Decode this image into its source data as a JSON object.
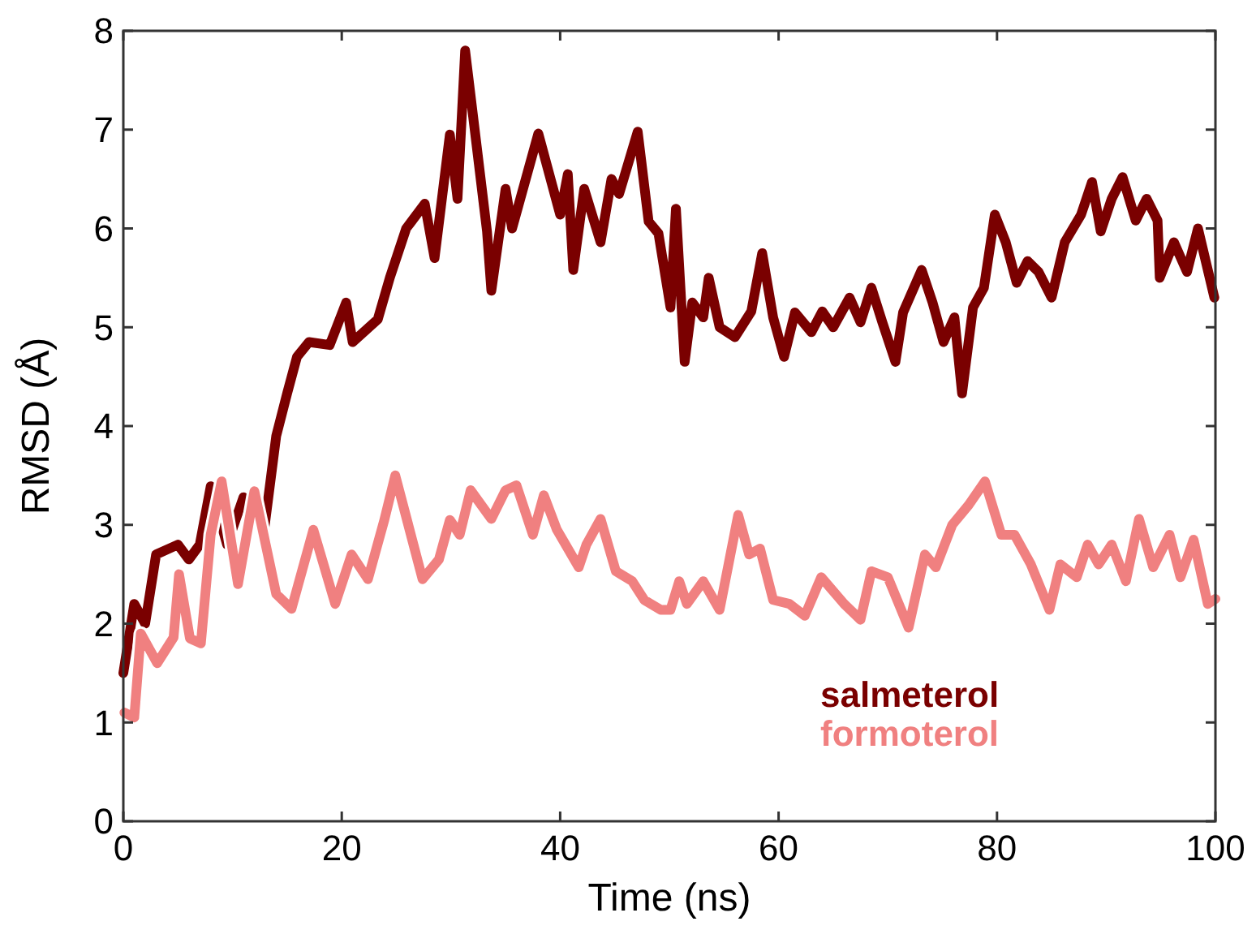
{
  "chart_data": {
    "type": "line",
    "xlabel": "Time (ns)",
    "ylabel": "RMSD (Å)",
    "xlim": [
      0,
      100
    ],
    "xticks": [
      0,
      20,
      40,
      60,
      80,
      100
    ],
    "ylim": [
      0,
      8
    ],
    "yticks": [
      0,
      1,
      2,
      3,
      4,
      5,
      6,
      7,
      8
    ],
    "grid": false,
    "legend": "bottom right",
    "marker": "none",
    "line_style": "solid",
    "series": [
      {
        "name": "salmeterol",
        "color": "#7a0000",
        "x": [
          0,
          1,
          2,
          3,
          5,
          6,
          7,
          8,
          9.5,
          11,
          12.9,
          14,
          15,
          15.9,
          17,
          18.9,
          20.4,
          21,
          23.3,
          24.4,
          25.9,
          27.6,
          28.5,
          29.9,
          30.6,
          31.3,
          33.3,
          33.7,
          35,
          35.6,
          38,
          40,
          40.7,
          41.2,
          42.2,
          43.7,
          44.7,
          45.4,
          47.1,
          48.1,
          49,
          50.1,
          50.6,
          51.4,
          52.1,
          53.1,
          53.6,
          54.6,
          56,
          57.5,
          58.5,
          59.5,
          60.5,
          61.5,
          63,
          64,
          65,
          66.5,
          67.5,
          68.5,
          69.5,
          70.7,
          71.4,
          73.1,
          74.1,
          75.1,
          76.1,
          76.8,
          77.8,
          78.8,
          79.8,
          80.8,
          81.8,
          82.8,
          83.8,
          85,
          86.2,
          87.7,
          88.7,
          89.5,
          90.5,
          91.5,
          92.7,
          93.7,
          94.7,
          94.9,
          96.2,
          97.4,
          98.4,
          99.9
        ],
        "values": [
          1.5,
          2.2,
          2.0,
          2.7,
          2.8,
          2.65,
          2.8,
          3.39,
          2.8,
          3.28,
          2.95,
          3.9,
          4.33,
          4.7,
          4.85,
          4.82,
          5.25,
          4.85,
          5.08,
          5.5,
          6.0,
          6.25,
          5.7,
          6.95,
          6.3,
          7.8,
          5.97,
          5.37,
          6.4,
          6.0,
          6.96,
          6.14,
          6.55,
          5.58,
          6.4,
          5.86,
          6.5,
          6.35,
          6.98,
          6.07,
          5.95,
          5.2,
          6.2,
          4.65,
          5.25,
          5.1,
          5.5,
          5.0,
          4.9,
          5.16,
          5.75,
          5.1,
          4.7,
          5.15,
          4.95,
          5.16,
          5.0,
          5.3,
          5.05,
          5.4,
          5.05,
          4.65,
          5.15,
          5.58,
          5.25,
          4.85,
          5.1,
          4.33,
          5.2,
          5.4,
          6.14,
          5.86,
          5.45,
          5.67,
          5.56,
          5.3,
          5.86,
          6.14,
          6.47,
          5.97,
          6.3,
          6.52,
          6.08,
          6.3,
          6.08,
          5.5,
          5.86,
          5.56,
          6.0,
          5.3
        ]
      },
      {
        "name": "formoterol",
        "color": "#f08080",
        "x": [
          0.1,
          1,
          1.6,
          3.1,
          4.6,
          5.1,
          6.1,
          7.1,
          8.0,
          9.0,
          10.5,
          12,
          14,
          15.4,
          17.4,
          19.4,
          20.9,
          22.4,
          23.9,
          24.9,
          27.4,
          28.9,
          29.9,
          30.8,
          31.8,
          33.7,
          35,
          36,
          37.5,
          38.5,
          39.7,
          41.7,
          42.4,
          43.7,
          45.1,
          46.6,
          47.7,
          49.2,
          50.1,
          50.9,
          51.6,
          53.1,
          54.6,
          56.3,
          57.3,
          58.3,
          59.5,
          61,
          62.4,
          63.9,
          66,
          67.5,
          68.5,
          70,
          71.9,
          73.4,
          74.4,
          75.9,
          77.4,
          78.9,
          80.4,
          81.6,
          83.1,
          84.8,
          85.8,
          87.3,
          88.3,
          89.3,
          90.5,
          91.8,
          93,
          94.3,
          95.8,
          96.8,
          98,
          99.3,
          100
        ],
        "values": [
          1.1,
          1.05,
          1.9,
          1.6,
          1.86,
          2.5,
          1.85,
          1.8,
          2.9,
          3.44,
          2.4,
          3.34,
          2.3,
          2.15,
          2.95,
          2.2,
          2.7,
          2.45,
          3.05,
          3.5,
          2.45,
          2.65,
          3.05,
          2.9,
          3.35,
          3.06,
          3.35,
          3.4,
          2.9,
          3.3,
          2.95,
          2.57,
          2.8,
          3.06,
          2.53,
          2.43,
          2.24,
          2.14,
          2.14,
          2.43,
          2.2,
          2.43,
          2.14,
          3.1,
          2.7,
          2.76,
          2.24,
          2.2,
          2.08,
          2.47,
          2.2,
          2.04,
          2.53,
          2.47,
          1.96,
          2.7,
          2.57,
          3.0,
          3.2,
          3.44,
          2.9,
          2.9,
          2.6,
          2.14,
          2.6,
          2.47,
          2.8,
          2.6,
          2.8,
          2.43,
          3.06,
          2.57,
          2.9,
          2.47,
          2.85,
          2.2,
          2.25
        ]
      }
    ]
  }
}
